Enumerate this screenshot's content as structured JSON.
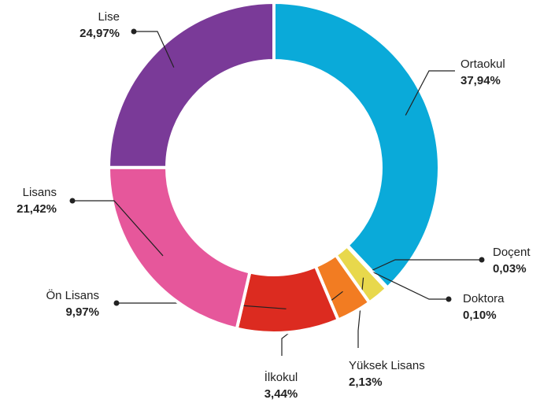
{
  "chart_data": {
    "type": "donut",
    "categories": [
      "Ortaokul",
      "Doçent",
      "Doktora",
      "Yüksek Lisans",
      "İlkokul",
      "Ön Lisans",
      "Lisans",
      "Lise"
    ],
    "values": [
      37.94,
      0.03,
      0.1,
      2.13,
      3.44,
      9.97,
      21.42,
      24.97
    ],
    "value_labels": [
      "37,94%",
      "0,03%",
      "0,10%",
      "2,13%",
      "3,44%",
      "9,97%",
      "21,42%",
      "24,97%"
    ],
    "colors": [
      "#0aaad9",
      "#6cc7a4",
      "#3db54a",
      "#e8d84c",
      "#f27c22",
      "#dc2b20",
      "#e6579b",
      "#7a3a98"
    ]
  }
}
